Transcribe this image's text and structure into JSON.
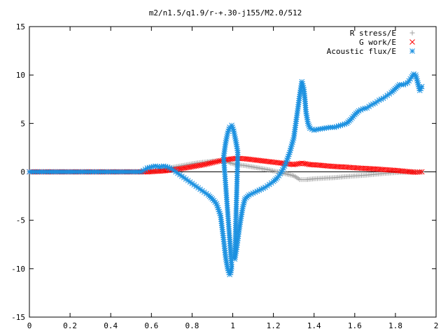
{
  "chart_data": {
    "type": "scatter",
    "title": "m2/n1.5/q1.9/r-+.30-j155/M2.0/512",
    "xlabel": "",
    "ylabel": "",
    "xlim": [
      0,
      2
    ],
    "ylim": [
      -15,
      15
    ],
    "x_ticks": [
      0,
      0.2,
      0.4,
      0.6,
      0.8,
      1,
      1.2,
      1.4,
      1.6,
      1.8,
      2
    ],
    "x_tick_labels": [
      "0",
      "0.2",
      "0.4",
      "0.6",
      "0.8",
      "1",
      "1.2",
      "1.4",
      "1.6",
      "1.8",
      "2"
    ],
    "y_ticks": [
      -15,
      -10,
      -5,
      0,
      5,
      10,
      15
    ],
    "y_tick_labels": [
      "-15",
      "-10",
      "-5",
      "0",
      "5",
      "10",
      "15"
    ],
    "grid": false,
    "legend_position": "top-right",
    "series": [
      {
        "name": "R stress/E",
        "marker": "plus",
        "color": "#a0a0a0",
        "points": [
          [
            0.0,
            0
          ],
          [
            0.58,
            0
          ],
          [
            0.62,
            0.05
          ],
          [
            0.66,
            0.25
          ],
          [
            0.7,
            0.45
          ],
          [
            0.74,
            0.6
          ],
          [
            0.78,
            0.75
          ],
          [
            0.82,
            0.9
          ],
          [
            0.86,
            1.0
          ],
          [
            0.9,
            1.1
          ],
          [
            0.94,
            1.15
          ],
          [
            0.97,
            1.1
          ],
          [
            0.99,
            0.9
          ],
          [
            1.02,
            0.75
          ],
          [
            1.06,
            0.65
          ],
          [
            1.1,
            0.5
          ],
          [
            1.14,
            0.35
          ],
          [
            1.18,
            0.2
          ],
          [
            1.22,
            0.0
          ],
          [
            1.26,
            -0.2
          ],
          [
            1.3,
            -0.4
          ],
          [
            1.33,
            -0.8
          ],
          [
            1.36,
            -0.8
          ],
          [
            1.4,
            -0.72
          ],
          [
            1.45,
            -0.65
          ],
          [
            1.5,
            -0.6
          ],
          [
            1.55,
            -0.5
          ],
          [
            1.6,
            -0.42
          ],
          [
            1.65,
            -0.35
          ],
          [
            1.7,
            -0.25
          ],
          [
            1.75,
            -0.15
          ],
          [
            1.8,
            -0.08
          ],
          [
            1.85,
            -0.03
          ],
          [
            1.9,
            0.0
          ],
          [
            1.93,
            0.02
          ]
        ]
      },
      {
        "name": "G work/E",
        "marker": "cross",
        "color": "#ff0000",
        "points": [
          [
            0.0,
            0
          ],
          [
            0.58,
            0
          ],
          [
            0.62,
            0.05
          ],
          [
            0.66,
            0.1
          ],
          [
            0.7,
            0.2
          ],
          [
            0.74,
            0.3
          ],
          [
            0.78,
            0.45
          ],
          [
            0.82,
            0.6
          ],
          [
            0.86,
            0.75
          ],
          [
            0.9,
            0.95
          ],
          [
            0.94,
            1.15
          ],
          [
            0.98,
            1.3
          ],
          [
            1.02,
            1.4
          ],
          [
            1.06,
            1.35
          ],
          [
            1.1,
            1.25
          ],
          [
            1.14,
            1.15
          ],
          [
            1.18,
            1.05
          ],
          [
            1.22,
            0.95
          ],
          [
            1.26,
            0.85
          ],
          [
            1.3,
            0.75
          ],
          [
            1.34,
            0.9
          ],
          [
            1.38,
            0.75
          ],
          [
            1.42,
            0.7
          ],
          [
            1.46,
            0.62
          ],
          [
            1.5,
            0.55
          ],
          [
            1.55,
            0.5
          ],
          [
            1.6,
            0.42
          ],
          [
            1.65,
            0.35
          ],
          [
            1.7,
            0.3
          ],
          [
            1.75,
            0.22
          ],
          [
            1.8,
            0.15
          ],
          [
            1.85,
            0.05
          ],
          [
            1.9,
            -0.05
          ],
          [
            1.93,
            0.0
          ]
        ]
      },
      {
        "name": "Acoustic flux/E",
        "marker": "star",
        "color": "#1a90e0",
        "points": [
          [
            0.0,
            0
          ],
          [
            0.05,
            0
          ],
          [
            0.1,
            0
          ],
          [
            0.15,
            0
          ],
          [
            0.2,
            0
          ],
          [
            0.25,
            0
          ],
          [
            0.3,
            0
          ],
          [
            0.35,
            0
          ],
          [
            0.4,
            0
          ],
          [
            0.45,
            0
          ],
          [
            0.5,
            0
          ],
          [
            0.55,
            0
          ],
          [
            0.58,
            0.4
          ],
          [
            0.6,
            0.5
          ],
          [
            0.62,
            0.6
          ],
          [
            0.64,
            0.5
          ],
          [
            0.66,
            0.6
          ],
          [
            0.68,
            0.5
          ],
          [
            0.7,
            0.3
          ],
          [
            0.72,
            0.0
          ],
          [
            0.74,
            -0.3
          ],
          [
            0.76,
            -0.6
          ],
          [
            0.78,
            -0.9
          ],
          [
            0.8,
            -1.2
          ],
          [
            0.82,
            -1.5
          ],
          [
            0.84,
            -1.8
          ],
          [
            0.86,
            -2.1
          ],
          [
            0.88,
            -2.4
          ],
          [
            0.9,
            -2.8
          ],
          [
            0.92,
            -3.3
          ],
          [
            0.94,
            -4.5
          ],
          [
            0.955,
            -7.0
          ],
          [
            0.965,
            -8.8
          ],
          [
            0.975,
            -10.0
          ],
          [
            0.985,
            -10.6
          ],
          [
            0.99,
            -10.4
          ],
          [
            0.995,
            -9.8
          ],
          [
            0.955,
            1.5
          ],
          [
            0.965,
            3.0
          ],
          [
            0.975,
            4.0
          ],
          [
            0.985,
            4.6
          ],
          [
            0.995,
            4.8
          ],
          [
            1.005,
            4.2
          ],
          [
            1.015,
            3.2
          ],
          [
            1.025,
            2.0
          ],
          [
            1.01,
            -9.0
          ],
          [
            1.02,
            -7.8
          ],
          [
            1.03,
            -6.2
          ],
          [
            1.04,
            -4.8
          ],
          [
            1.05,
            -3.6
          ],
          [
            1.06,
            -2.8
          ],
          [
            1.08,
            -2.4
          ],
          [
            1.1,
            -2.2
          ],
          [
            1.12,
            -2.0
          ],
          [
            1.14,
            -1.8
          ],
          [
            1.16,
            -1.6
          ],
          [
            1.18,
            -1.3
          ],
          [
            1.2,
            -1.0
          ],
          [
            1.22,
            -0.6
          ],
          [
            1.24,
            0.0
          ],
          [
            1.26,
            0.8
          ],
          [
            1.28,
            2.0
          ],
          [
            1.3,
            3.5
          ],
          [
            1.31,
            5.0
          ],
          [
            1.32,
            6.5
          ],
          [
            1.33,
            8.0
          ],
          [
            1.34,
            9.3
          ],
          [
            1.35,
            8.5
          ],
          [
            1.355,
            7.5
          ],
          [
            1.36,
            6.2
          ],
          [
            1.37,
            5.0
          ],
          [
            1.38,
            4.5
          ],
          [
            1.4,
            4.3
          ],
          [
            1.42,
            4.4
          ],
          [
            1.45,
            4.5
          ],
          [
            1.48,
            4.6
          ],
          [
            1.5,
            4.6
          ],
          [
            1.53,
            4.8
          ],
          [
            1.56,
            5.0
          ],
          [
            1.58,
            5.4
          ],
          [
            1.6,
            5.9
          ],
          [
            1.62,
            6.3
          ],
          [
            1.64,
            6.5
          ],
          [
            1.66,
            6.6
          ],
          [
            1.68,
            6.9
          ],
          [
            1.7,
            7.1
          ],
          [
            1.72,
            7.4
          ],
          [
            1.74,
            7.6
          ],
          [
            1.76,
            7.9
          ],
          [
            1.78,
            8.2
          ],
          [
            1.8,
            8.6
          ],
          [
            1.82,
            9.0
          ],
          [
            1.84,
            9.0
          ],
          [
            1.86,
            9.2
          ],
          [
            1.88,
            9.8
          ],
          [
            1.89,
            10.1
          ],
          [
            1.9,
            10.0
          ],
          [
            1.91,
            9.2
          ],
          [
            1.92,
            8.4
          ],
          [
            1.93,
            8.8
          ]
        ]
      }
    ]
  }
}
